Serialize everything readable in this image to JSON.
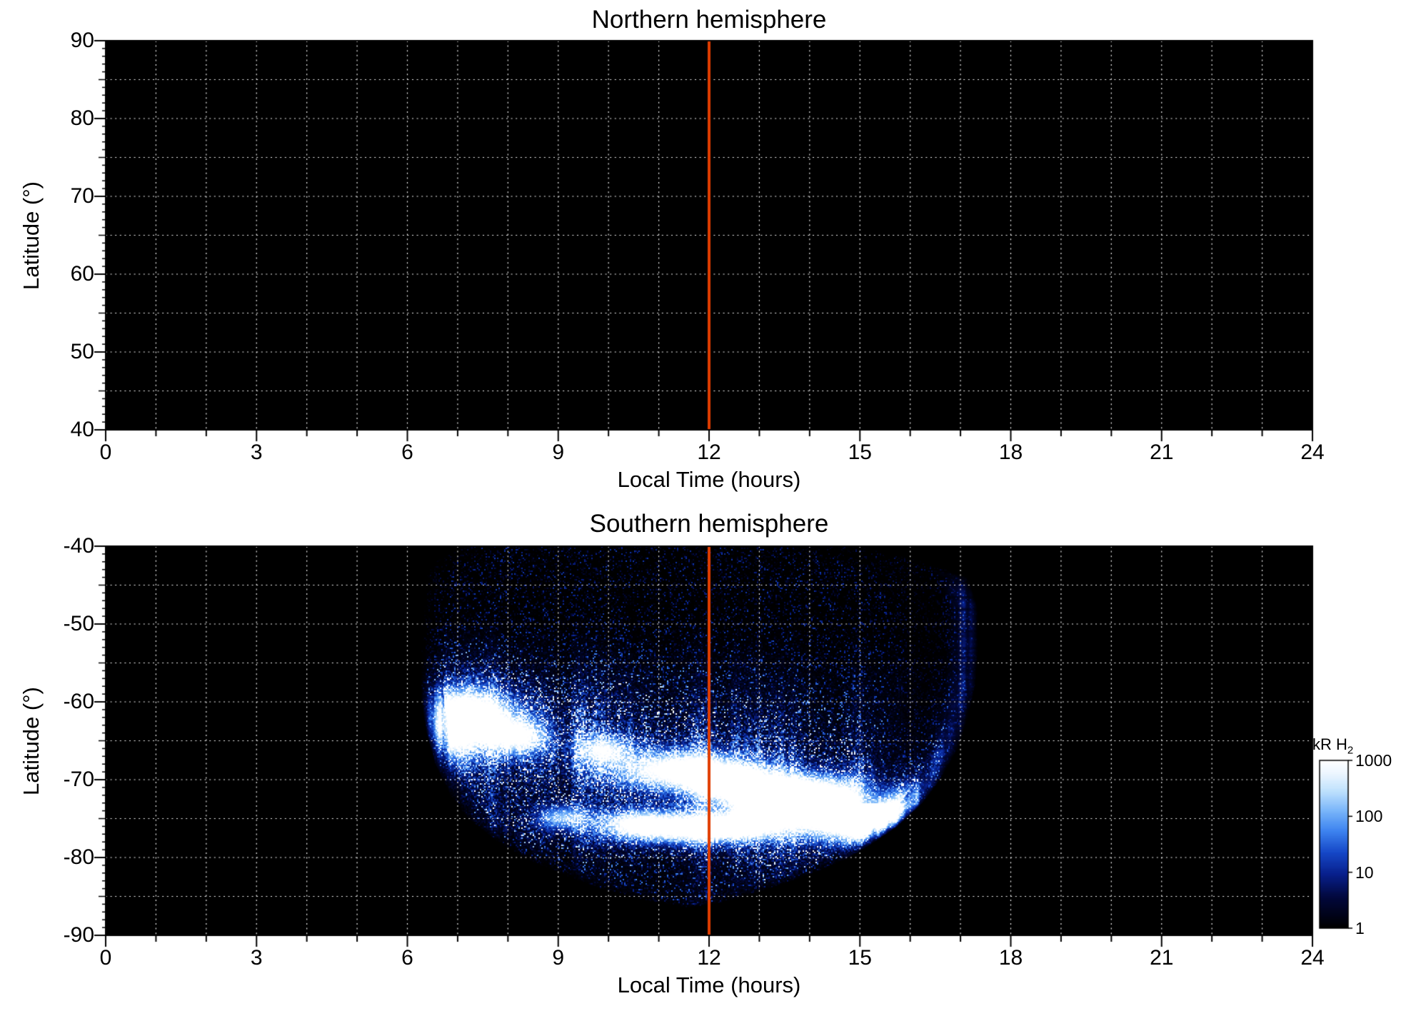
{
  "figure": {
    "background": "#ffffff",
    "text_color": "#000000",
    "panel_background": "#000000",
    "grid_color": "#ffffff",
    "noon_line_color": "#e13d00"
  },
  "chart_data": [
    {
      "type": "heatmap",
      "title": "Northern hemisphere",
      "xlabel": "Local Time (hours)",
      "ylabel": "Latitude (°)",
      "xlim": [
        0,
        24
      ],
      "ylim": [
        40,
        90
      ],
      "xticks": [
        "0",
        "3",
        "6",
        "9",
        "12",
        "15",
        "18",
        "21",
        "24"
      ],
      "yticks": [
        "90",
        "80",
        "70",
        "60",
        "50",
        "40"
      ],
      "grid": {
        "x_step": 1,
        "y_step": 5,
        "style": "dotted"
      },
      "noon_line_x": 12,
      "emission": null
    },
    {
      "type": "heatmap",
      "title": "Southern hemisphere",
      "xlabel": "Local Time (hours)",
      "ylabel": "Latitude (°)",
      "xlim": [
        0,
        24
      ],
      "ylim": [
        -90,
        -40
      ],
      "xticks": [
        "0",
        "3",
        "6",
        "9",
        "12",
        "15",
        "18",
        "21",
        "24"
      ],
      "yticks": [
        "-40",
        "-50",
        "-60",
        "-70",
        "-80",
        "-90"
      ],
      "grid": {
        "x_step": 1,
        "y_step": 5,
        "style": "dotted"
      },
      "noon_line_x": 12,
      "emission": {
        "units": "kR H2",
        "scale": "log",
        "range_kR": [
          1,
          1000
        ],
        "coverage_left_boundary": [
          [
            -86.5,
            11.6
          ],
          [
            -85.5,
            10.7
          ],
          [
            -84,
            9.8
          ],
          [
            -82,
            9.0
          ],
          [
            -80,
            8.3
          ],
          [
            -78,
            7.8
          ],
          [
            -75,
            7.2
          ],
          [
            -72,
            6.85
          ],
          [
            -68,
            6.55
          ],
          [
            -64,
            6.38
          ],
          [
            -60,
            6.28
          ],
          [
            -55,
            6.25
          ],
          [
            -50,
            6.3
          ],
          [
            -44,
            6.35
          ],
          [
            -42,
            6.55
          ],
          [
            -40,
            7.1
          ]
        ],
        "coverage_right_boundary": [
          [
            -86.5,
            11.6
          ],
          [
            -85.5,
            12.5
          ],
          [
            -84,
            13.2
          ],
          [
            -82,
            14.1
          ],
          [
            -80,
            14.8
          ],
          [
            -78,
            15.3
          ],
          [
            -76,
            15.75
          ],
          [
            -73,
            16.25
          ],
          [
            -70,
            16.6
          ],
          [
            -66,
            16.95
          ],
          [
            -62,
            17.15
          ],
          [
            -58,
            17.3
          ],
          [
            -54,
            17.35
          ],
          [
            -48,
            17.35
          ],
          [
            -44,
            17.15
          ],
          [
            -42,
            16.3
          ],
          [
            -40,
            15.0
          ]
        ],
        "oval_centerline": [
          [
            6.5,
            -62.5
          ],
          [
            8,
            -64
          ],
          [
            10,
            -66.5
          ],
          [
            12,
            -69.5
          ],
          [
            14,
            -72.5
          ],
          [
            15.5,
            -74.8
          ],
          [
            16.8,
            -76.5
          ]
        ],
        "oval": {
          "broad_amp": 0.22,
          "broad_sigma": 6,
          "core_amp": 0.28,
          "core_sigma": 3.2,
          "halo_amp": 0.14,
          "halo_sigma": 13
        },
        "lower_band": {
          "t": 11.6,
          "lat": -76.2,
          "sigma_t": 2.6,
          "sigma_lat": 2.0,
          "amp": 0.3
        },
        "bright_patches": [
          [
            7.25,
            -62.0,
            0.6,
            2.4,
            1.1
          ],
          [
            6.7,
            -64.5,
            0.4,
            3.0,
            0.7
          ],
          [
            8.2,
            -64.5,
            0.4,
            1.6,
            0.8
          ],
          [
            9.9,
            -66.2,
            0.35,
            1.3,
            0.7
          ],
          [
            11.4,
            -68.8,
            0.85,
            1.7,
            1.0
          ],
          [
            12.4,
            -70.4,
            0.55,
            1.5,
            0.85
          ],
          [
            13.4,
            -71.9,
            0.65,
            1.6,
            0.95
          ],
          [
            14.5,
            -73.4,
            1.05,
            2.3,
            1.15
          ],
          [
            15.3,
            -75.0,
            0.8,
            2.0,
            1.05
          ],
          [
            10.6,
            -75.8,
            0.55,
            1.3,
            0.9
          ],
          [
            11.7,
            -76.3,
            0.6,
            1.3,
            0.95
          ],
          [
            12.7,
            -75.9,
            0.5,
            1.2,
            0.85
          ],
          [
            9.1,
            -74.9,
            0.35,
            1.1,
            0.65
          ]
        ]
      }
    }
  ],
  "colorbar": {
    "label": "kR H",
    "label_sub": "2",
    "ticks": [
      "1000",
      "100",
      "10",
      "1"
    ],
    "tick_values": [
      1000,
      100,
      10,
      1
    ],
    "scale": "log",
    "colormap_stops": [
      [
        0.0,
        "#000000"
      ],
      [
        0.18,
        "#02083c"
      ],
      [
        0.32,
        "#08208c"
      ],
      [
        0.45,
        "#1648c8"
      ],
      [
        0.58,
        "#3e84f0"
      ],
      [
        0.7,
        "#7ab6fa"
      ],
      [
        0.82,
        "#c0e2fd"
      ],
      [
        0.92,
        "#ecf6ff"
      ],
      [
        1.0,
        "#ffffff"
      ]
    ]
  }
}
